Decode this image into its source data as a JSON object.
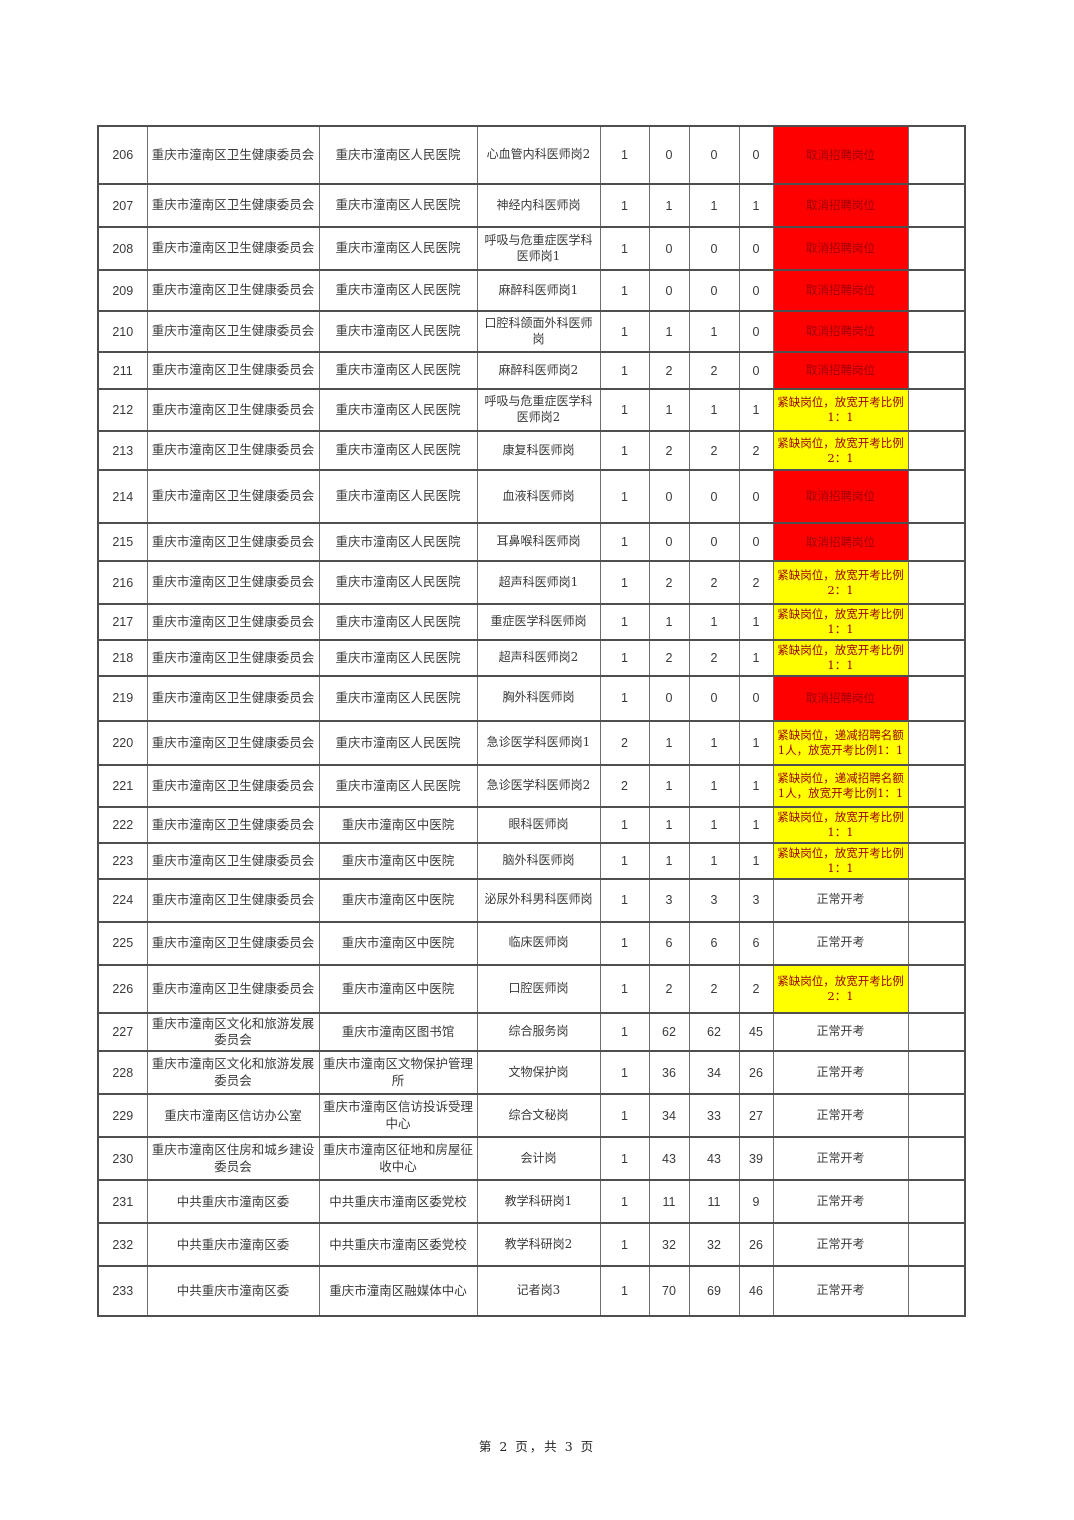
{
  "page": {
    "footer": "第 2 页，共 3 页"
  },
  "colors": {
    "cancel_bg": "#ff0000",
    "shortage_bg": "#ffff00",
    "status_text": "#9c0006",
    "grid_line": "#4f4f4f"
  },
  "status_types": {
    "cancel": "取消招聘岗位",
    "shortage_prefix": "紧缺岗位",
    "normal": "正常开考"
  },
  "rows": [
    {
      "no": "206",
      "org": "重庆市潼南区卫生健康委员会",
      "unit": "重庆市潼南区人民医院",
      "position": "心血管内科医师岗2",
      "n1": "1",
      "n2": "0",
      "n3": "0",
      "n4": "0",
      "status": "取消招聘岗位",
      "status_type": "cancel",
      "remark": ""
    },
    {
      "no": "207",
      "org": "重庆市潼南区卫生健康委员会",
      "unit": "重庆市潼南区人民医院",
      "position": "神经内科医师岗",
      "n1": "1",
      "n2": "1",
      "n3": "1",
      "n4": "1",
      "status": "取消招聘岗位",
      "status_type": "cancel",
      "remark": ""
    },
    {
      "no": "208",
      "org": "重庆市潼南区卫生健康委员会",
      "unit": "重庆市潼南区人民医院",
      "position": "呼吸与危重症医学科医师岗1",
      "n1": "1",
      "n2": "0",
      "n3": "0",
      "n4": "0",
      "status": "取消招聘岗位",
      "status_type": "cancel",
      "remark": ""
    },
    {
      "no": "209",
      "org": "重庆市潼南区卫生健康委员会",
      "unit": "重庆市潼南区人民医院",
      "position": "麻醉科医师岗1",
      "n1": "1",
      "n2": "0",
      "n3": "0",
      "n4": "0",
      "status": "取消招聘岗位",
      "status_type": "cancel",
      "remark": ""
    },
    {
      "no": "210",
      "org": "重庆市潼南区卫生健康委员会",
      "unit": "重庆市潼南区人民医院",
      "position": "口腔科颌面外科医师岗",
      "n1": "1",
      "n2": "1",
      "n3": "1",
      "n4": "0",
      "status": "取消招聘岗位",
      "status_type": "cancel",
      "remark": ""
    },
    {
      "no": "211",
      "org": "重庆市潼南区卫生健康委员会",
      "unit": "重庆市潼南区人民医院",
      "position": "麻醉科医师岗2",
      "n1": "1",
      "n2": "2",
      "n3": "2",
      "n4": "0",
      "status": "取消招聘岗位",
      "status_type": "cancel",
      "remark": ""
    },
    {
      "no": "212",
      "org": "重庆市潼南区卫生健康委员会",
      "unit": "重庆市潼南区人民医院",
      "position": "呼吸与危重症医学科医师岗2",
      "n1": "1",
      "n2": "1",
      "n3": "1",
      "n4": "1",
      "status": "紧缺岗位，放宽开考比例1：1",
      "status_type": "shortage",
      "remark": ""
    },
    {
      "no": "213",
      "org": "重庆市潼南区卫生健康委员会",
      "unit": "重庆市潼南区人民医院",
      "position": "康复科医师岗",
      "n1": "1",
      "n2": "2",
      "n3": "2",
      "n4": "2",
      "status": "紧缺岗位，放宽开考比例2：1",
      "status_type": "shortage",
      "remark": ""
    },
    {
      "no": "214",
      "org": "重庆市潼南区卫生健康委员会",
      "unit": "重庆市潼南区人民医院",
      "position": "血液科医师岗",
      "n1": "1",
      "n2": "0",
      "n3": "0",
      "n4": "0",
      "status": "取消招聘岗位",
      "status_type": "cancel",
      "remark": ""
    },
    {
      "no": "215",
      "org": "重庆市潼南区卫生健康委员会",
      "unit": "重庆市潼南区人民医院",
      "position": "耳鼻喉科医师岗",
      "n1": "1",
      "n2": "0",
      "n3": "0",
      "n4": "0",
      "status": "取消招聘岗位",
      "status_type": "cancel",
      "remark": ""
    },
    {
      "no": "216",
      "org": "重庆市潼南区卫生健康委员会",
      "unit": "重庆市潼南区人民医院",
      "position": "超声科医师岗1",
      "n1": "1",
      "n2": "2",
      "n3": "2",
      "n4": "2",
      "status": "紧缺岗位，放宽开考比例2：1",
      "status_type": "shortage",
      "remark": ""
    },
    {
      "no": "217",
      "org": "重庆市潼南区卫生健康委员会",
      "unit": "重庆市潼南区人民医院",
      "position": "重症医学科医师岗",
      "n1": "1",
      "n2": "1",
      "n3": "1",
      "n4": "1",
      "status": "紧缺岗位，放宽开考比例1：1",
      "status_type": "shortage",
      "remark": ""
    },
    {
      "no": "218",
      "org": "重庆市潼南区卫生健康委员会",
      "unit": "重庆市潼南区人民医院",
      "position": "超声科医师岗2",
      "n1": "1",
      "n2": "2",
      "n3": "2",
      "n4": "1",
      "status": "紧缺岗位，放宽开考比例1：1",
      "status_type": "shortage",
      "remark": ""
    },
    {
      "no": "219",
      "org": "重庆市潼南区卫生健康委员会",
      "unit": "重庆市潼南区人民医院",
      "position": "胸外科医师岗",
      "n1": "1",
      "n2": "0",
      "n3": "0",
      "n4": "0",
      "status": "取消招聘岗位",
      "status_type": "cancel",
      "remark": ""
    },
    {
      "no": "220",
      "org": "重庆市潼南区卫生健康委员会",
      "unit": "重庆市潼南区人民医院",
      "position": "急诊医学科医师岗1",
      "n1": "2",
      "n2": "1",
      "n3": "1",
      "n4": "1",
      "status": "紧缺岗位，递减招聘名额1人，放宽开考比例1：1",
      "status_type": "shortage",
      "remark": ""
    },
    {
      "no": "221",
      "org": "重庆市潼南区卫生健康委员会",
      "unit": "重庆市潼南区人民医院",
      "position": "急诊医学科医师岗2",
      "n1": "2",
      "n2": "1",
      "n3": "1",
      "n4": "1",
      "status": "紧缺岗位，递减招聘名额1人，放宽开考比例1：1",
      "status_type": "shortage",
      "remark": ""
    },
    {
      "no": "222",
      "org": "重庆市潼南区卫生健康委员会",
      "unit": "重庆市潼南区中医院",
      "position": "眼科医师岗",
      "n1": "1",
      "n2": "1",
      "n3": "1",
      "n4": "1",
      "status": "紧缺岗位，放宽开考比例1：1",
      "status_type": "shortage",
      "remark": ""
    },
    {
      "no": "223",
      "org": "重庆市潼南区卫生健康委员会",
      "unit": "重庆市潼南区中医院",
      "position": "脑外科医师岗",
      "n1": "1",
      "n2": "1",
      "n3": "1",
      "n4": "1",
      "status": "紧缺岗位，放宽开考比例1：1",
      "status_type": "shortage",
      "remark": ""
    },
    {
      "no": "224",
      "org": "重庆市潼南区卫生健康委员会",
      "unit": "重庆市潼南区中医院",
      "position": "泌尿外科男科医师岗",
      "n1": "1",
      "n2": "3",
      "n3": "3",
      "n4": "3",
      "status": "正常开考",
      "status_type": "normal",
      "remark": ""
    },
    {
      "no": "225",
      "org": "重庆市潼南区卫生健康委员会",
      "unit": "重庆市潼南区中医院",
      "position": "临床医师岗",
      "n1": "1",
      "n2": "6",
      "n3": "6",
      "n4": "6",
      "status": "正常开考",
      "status_type": "normal",
      "remark": ""
    },
    {
      "no": "226",
      "org": "重庆市潼南区卫生健康委员会",
      "unit": "重庆市潼南区中医院",
      "position": "口腔医师岗",
      "n1": "1",
      "n2": "2",
      "n3": "2",
      "n4": "2",
      "status": "紧缺岗位，放宽开考比例2：1",
      "status_type": "shortage",
      "remark": ""
    },
    {
      "no": "227",
      "org": "重庆市潼南区文化和旅游发展委员会",
      "unit": "重庆市潼南区图书馆",
      "position": "综合服务岗",
      "n1": "1",
      "n2": "62",
      "n3": "62",
      "n4": "45",
      "status": "正常开考",
      "status_type": "normal",
      "remark": ""
    },
    {
      "no": "228",
      "org": "重庆市潼南区文化和旅游发展委员会",
      "unit": "重庆市潼南区文物保护管理所",
      "position": "文物保护岗",
      "n1": "1",
      "n2": "36",
      "n3": "34",
      "n4": "26",
      "status": "正常开考",
      "status_type": "normal",
      "remark": ""
    },
    {
      "no": "229",
      "org": "重庆市潼南区信访办公室",
      "unit": "重庆市潼南区信访投诉受理中心",
      "position": "综合文秘岗",
      "n1": "1",
      "n2": "34",
      "n3": "33",
      "n4": "27",
      "status": "正常开考",
      "status_type": "normal",
      "remark": ""
    },
    {
      "no": "230",
      "org": "重庆市潼南区住房和城乡建设委员会",
      "unit": "重庆市潼南区征地和房屋征收中心",
      "position": "会计岗",
      "n1": "1",
      "n2": "43",
      "n3": "43",
      "n4": "39",
      "status": "正常开考",
      "status_type": "normal",
      "remark": ""
    },
    {
      "no": "231",
      "org": "中共重庆市潼南区委",
      "unit": "中共重庆市潼南区委党校",
      "position": "教学科研岗1",
      "n1": "1",
      "n2": "11",
      "n3": "11",
      "n4": "9",
      "status": "正常开考",
      "status_type": "normal",
      "remark": ""
    },
    {
      "no": "232",
      "org": "中共重庆市潼南区委",
      "unit": "中共重庆市潼南区委党校",
      "position": "教学科研岗2",
      "n1": "1",
      "n2": "32",
      "n3": "32",
      "n4": "26",
      "status": "正常开考",
      "status_type": "normal",
      "remark": ""
    },
    {
      "no": "233",
      "org": "中共重庆市潼南区委",
      "unit": "重庆市潼南区融媒体中心",
      "position": "记者岗3",
      "n1": "1",
      "n2": "70",
      "n3": "69",
      "n4": "46",
      "status": "正常开考",
      "status_type": "normal",
      "remark": ""
    }
  ]
}
